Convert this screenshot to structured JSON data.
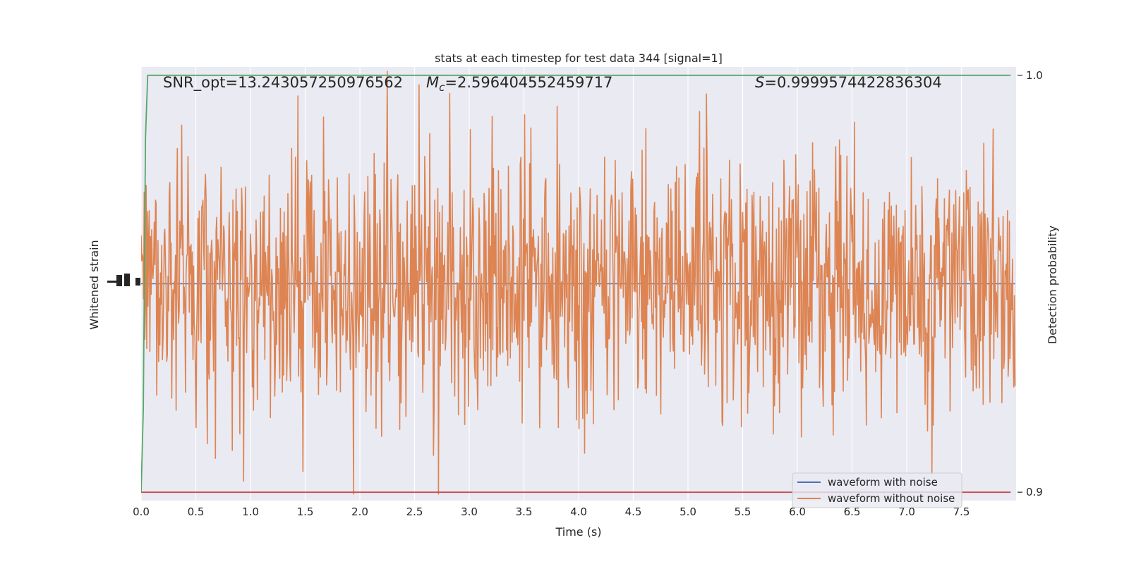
{
  "chart_data": {
    "type": "line",
    "title": "stats at each timestep for test data 344 [signal=1]",
    "xlabel": "Time (s)",
    "ylabel": "Whitened strain",
    "ylabel_right": "Detection probability",
    "xlim": [
      0.0,
      8.0
    ],
    "x_ticks": [
      "0.0",
      "0.5",
      "1.0",
      "1.5",
      "2.0",
      "2.5",
      "3.0",
      "3.5",
      "4.0",
      "4.5",
      "5.0",
      "5.5",
      "6.0",
      "6.5",
      "7.0",
      "7.5"
    ],
    "ylim": [
      -1.0,
      1.0
    ],
    "ylim_right": [
      0.898,
      1.002
    ],
    "y_ticks_right": [
      "1.0",
      "0.9"
    ],
    "grid": true,
    "annotations": {
      "snr": "SNR_opt=13.243057250976562",
      "mc": "M_c=2.596404552459717",
      "s": "S=0.9999574422836304"
    },
    "legend": {
      "placement": "lower-right",
      "entries": [
        "waveform with noise",
        "waveform without noise"
      ]
    },
    "series": [
      {
        "name": "waveform with noise",
        "color": "#4c72b0",
        "axis": "left",
        "generated": "noise",
        "amplitude": 0.0,
        "n": 1400
      },
      {
        "name": "waveform without noise",
        "color": "#dd8452",
        "axis": "left",
        "generated": "noise",
        "amplitude": 1.0,
        "n": 1400
      },
      {
        "color": "#55a868",
        "axis": "right",
        "x": [
          0.0,
          0.02,
          0.04,
          0.06,
          0.1,
          0.2,
          7.95
        ],
        "y": [
          0.9,
          0.92,
          0.985,
          1.0,
          1.0,
          1.0,
          1.0
        ]
      },
      {
        "color": "#c44e52",
        "axis": "right",
        "x": [
          0.0,
          7.95
        ],
        "y": [
          0.9,
          0.9
        ]
      }
    ]
  }
}
